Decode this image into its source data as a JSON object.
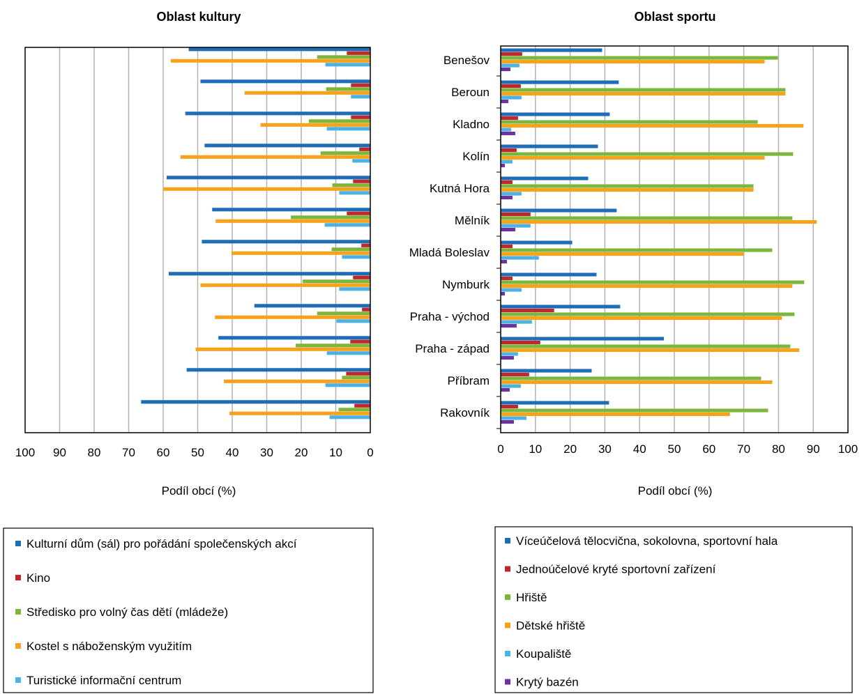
{
  "chart_data": [
    {
      "type": "bar",
      "orientation": "horizontal",
      "x_direction": "reversed",
      "title": "Oblast kultury",
      "xlabel": "Podíl obcí (%)",
      "xlim": [
        0,
        100
      ],
      "x_ticks": [
        "100",
        "90",
        "80",
        "70",
        "60",
        "50",
        "40",
        "30",
        "20",
        "10",
        "0"
      ],
      "grid": true,
      "legend_placement": "bottom",
      "categories": [
        "Benešov",
        "Beroun",
        "Kladno",
        "Kolín",
        "Kutná Hora",
        "Mělník",
        "Mladá Boleslav",
        "Nymburk",
        "Praha - východ",
        "Praha - západ",
        "Příbram",
        "Rakovník"
      ],
      "show_category_labels": false,
      "series": [
        {
          "name": "Kulturní dům (sál) pro pořádání společenských akcí",
          "color": "#1f6db5",
          "values": [
            52.6,
            49.2,
            53.6,
            48.0,
            59.0,
            45.8,
            48.8,
            58.4,
            33.6,
            44.0,
            53.2,
            66.4
          ]
        },
        {
          "name": "Kino",
          "color": "#c1272d",
          "values": [
            6.8,
            5.6,
            5.6,
            3.2,
            5.0,
            6.8,
            2.6,
            5.0,
            2.4,
            5.8,
            7.0,
            4.6
          ]
        },
        {
          "name": "Středisko pro volný čas dětí (mládeže)",
          "color": "#7db63a",
          "values": [
            15.4,
            12.8,
            17.8,
            14.4,
            11.0,
            23.0,
            11.2,
            19.6,
            15.4,
            21.6,
            8.2,
            9.2
          ]
        },
        {
          "name": "Kostel s náboženským využitím",
          "color": "#f7a21b",
          "values": [
            57.8,
            36.4,
            31.8,
            55.0,
            60.0,
            44.8,
            40.2,
            49.2,
            45.0,
            50.6,
            42.4,
            40.8
          ]
        },
        {
          "name": "Turistické informační centrum",
          "color": "#4cb2e4",
          "values": [
            13.0,
            5.6,
            12.6,
            5.2,
            9.0,
            13.2,
            8.2,
            9.0,
            9.8,
            12.6,
            13.0,
            11.8
          ]
        }
      ]
    },
    {
      "type": "bar",
      "orientation": "horizontal",
      "title": "Oblast sportu",
      "xlabel": "Podíl obcí (%)",
      "xlim": [
        0,
        100
      ],
      "x_ticks": [
        "0",
        "10",
        "20",
        "30",
        "40",
        "50",
        "60",
        "70",
        "80",
        "90",
        "100"
      ],
      "grid": true,
      "legend_placement": "bottom",
      "categories": [
        "Benešov",
        "Beroun",
        "Kladno",
        "Kolín",
        "Kutná Hora",
        "Mělník",
        "Mladá Boleslav",
        "Nymburk",
        "Praha - východ",
        "Praha - západ",
        "Příbram",
        "Rakovník"
      ],
      "show_category_labels": true,
      "series": [
        {
          "name": "Víceúčelová tělocvična, sokolovna, sportovní hala",
          "color": "#1f6db5",
          "values": [
            29.2,
            34.0,
            31.4,
            28.0,
            25.2,
            33.4,
            20.6,
            27.6,
            34.4,
            47.0,
            26.2,
            31.2
          ]
        },
        {
          "name": "Jednoúčelové kryté sportovní zařízení",
          "color": "#c1272d",
          "values": [
            6.2,
            5.8,
            5.0,
            4.6,
            3.4,
            8.6,
            3.4,
            3.4,
            15.4,
            11.4,
            8.2,
            5.0
          ]
        },
        {
          "name": "Hřiště",
          "color": "#7db63a",
          "values": [
            79.8,
            82.0,
            74.0,
            84.2,
            72.8,
            84.0,
            78.2,
            87.4,
            84.6,
            83.4,
            75.0,
            77.0
          ]
        },
        {
          "name": "Dětské hřiště",
          "color": "#f7a21b",
          "values": [
            76.0,
            82.0,
            87.2,
            76.0,
            72.8,
            91.0,
            70.0,
            84.0,
            81.0,
            86.0,
            78.2,
            66.0
          ]
        },
        {
          "name": "Koupaliště",
          "color": "#4cb2e4",
          "values": [
            5.4,
            6.0,
            3.0,
            3.4,
            6.0,
            8.6,
            11.0,
            6.0,
            9.0,
            5.0,
            5.8,
            7.4
          ]
        },
        {
          "name": "Krytý bazén",
          "color": "#7030a0",
          "values": [
            2.8,
            2.2,
            4.2,
            1.2,
            3.4,
            4.2,
            1.8,
            1.2,
            4.6,
            3.8,
            2.6,
            3.8
          ]
        }
      ]
    }
  ]
}
